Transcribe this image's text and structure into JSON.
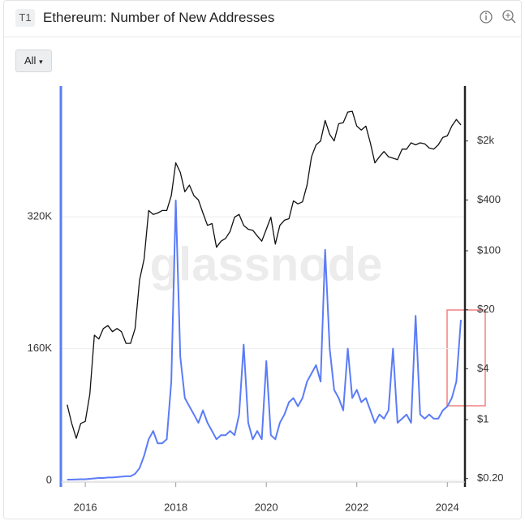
{
  "header": {
    "badge": "T1",
    "title": "Ethereum: Number of New Addresses",
    "filter": "All"
  },
  "chart_data": {
    "type": "line",
    "watermark": "glassnode",
    "x": [
      2015.6,
      2015.7,
      2015.8,
      2015.9,
      2016.0,
      2016.1,
      2016.2,
      2016.3,
      2016.4,
      2016.5,
      2016.6,
      2016.7,
      2016.8,
      2016.9,
      2017.0,
      2017.1,
      2017.2,
      2017.3,
      2017.4,
      2017.5,
      2017.6,
      2017.7,
      2017.8,
      2017.9,
      2018.0,
      2018.1,
      2018.2,
      2018.3,
      2018.4,
      2018.5,
      2018.6,
      2018.7,
      2018.8,
      2018.9,
      2019.0,
      2019.1,
      2019.2,
      2019.3,
      2019.4,
      2019.5,
      2019.6,
      2019.7,
      2019.8,
      2019.9,
      2020.0,
      2020.1,
      2020.2,
      2020.3,
      2020.4,
      2020.5,
      2020.6,
      2020.7,
      2020.8,
      2020.9,
      2021.0,
      2021.1,
      2021.2,
      2021.3,
      2021.4,
      2021.5,
      2021.6,
      2021.7,
      2021.8,
      2021.9,
      2022.0,
      2022.1,
      2022.2,
      2022.3,
      2022.4,
      2022.5,
      2022.6,
      2022.7,
      2022.8,
      2022.9,
      2023.0,
      2023.1,
      2023.2,
      2023.3,
      2023.4,
      2023.5,
      2023.6,
      2023.7,
      2023.8,
      2023.9,
      2024.0,
      2024.1,
      2024.2,
      2024.3
    ],
    "series": [
      {
        "color": "#5b7cf7",
        "values": [
          1000,
          1000,
          1200,
          1500,
          1500,
          2000,
          2500,
          3000,
          3000,
          3500,
          3500,
          4000,
          4500,
          5000,
          5000,
          8000,
          15000,
          30000,
          50000,
          60000,
          45000,
          45000,
          50000,
          120000,
          340000,
          150000,
          100000,
          90000,
          80000,
          70000,
          85000,
          70000,
          60000,
          50000,
          55000,
          55000,
          60000,
          55000,
          80000,
          165000,
          70000,
          50000,
          60000,
          50000,
          145000,
          55000,
          50000,
          70000,
          80000,
          95000,
          100000,
          90000,
          100000,
          120000,
          130000,
          140000,
          120000,
          280000,
          160000,
          110000,
          100000,
          85000,
          160000,
          100000,
          110000,
          95000,
          100000,
          85000,
          70000,
          80000,
          75000,
          85000,
          160000,
          70000,
          75000,
          80000,
          70000,
          200000,
          80000,
          75000,
          80000,
          75000,
          75000,
          85000,
          90000,
          100000,
          120000,
          195000
        ]
      },
      {
        "color": "#111111",
        "axis": "y2",
        "values": [
          1.5,
          0.9,
          0.6,
          0.9,
          0.95,
          2,
          10,
          9,
          12,
          13,
          11,
          12,
          11,
          8,
          8,
          12,
          45,
          80,
          300,
          270,
          280,
          300,
          300,
          450,
          1100,
          850,
          500,
          600,
          450,
          400,
          280,
          200,
          210,
          110,
          130,
          140,
          170,
          250,
          270,
          200,
          180,
          175,
          150,
          130,
          180,
          250,
          120,
          200,
          230,
          240,
          390,
          360,
          380,
          600,
          1300,
          1800,
          2000,
          3500,
          2400,
          2000,
          3200,
          3300,
          4400,
          4500,
          3000,
          2700,
          3000,
          1900,
          1100,
          1300,
          1500,
          1300,
          1250,
          1200,
          1600,
          1600,
          1900,
          1800,
          1900,
          1850,
          1650,
          1600,
          1800,
          2200,
          2300,
          3000,
          3600,
          3100
        ]
      }
    ],
    "xlim": [
      2015.46,
      2024.39
    ],
    "xticks": [
      2016,
      2018,
      2020,
      2022,
      2024
    ],
    "ylim": [
      0,
      475000
    ],
    "yticks": [
      0,
      {
        "value": 160000,
        "label": "160K"
      },
      {
        "value": 320000,
        "label": "320K"
      }
    ],
    "y2lim": [
      0.19,
      8200
    ],
    "y2scale": "log",
    "y2ticks": [
      {
        "value": 0.2,
        "label": "$0.20"
      },
      {
        "value": 1,
        "label": "$1"
      },
      {
        "value": 4,
        "label": "$4"
      },
      {
        "value": 20,
        "label": "$20"
      },
      {
        "value": 100,
        "label": "$100"
      },
      {
        "value": 400,
        "label": "$400"
      },
      {
        "value": 2000,
        "label": "$2k"
      }
    ],
    "grid": true
  }
}
